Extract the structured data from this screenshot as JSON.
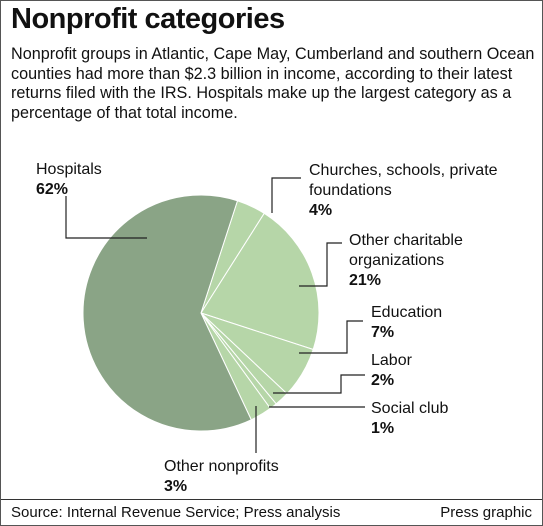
{
  "title": "Nonprofit categories",
  "subtitle": "Nonprofit groups in Atlantic, Cape May, Cumberland and southern Ocean counties had more than $2.3 billion in income, according to their latest returns filed with the IRS. Hospitals make up the largest category as a percentage of that total income.",
  "chart_data": {
    "type": "pie",
    "categories": [
      "Churches, schools, private foundations",
      "Other charitable organizations",
      "Education",
      "Labor",
      "Social club",
      "Other nonprofits",
      "Hospitals"
    ],
    "values": [
      4,
      21,
      7,
      2,
      1,
      3,
      62
    ],
    "value_labels": [
      "4%",
      "21%",
      "7%",
      "2%",
      "1%",
      "3%",
      "62%"
    ],
    "colors": [
      "#b6d6a8",
      "#b6d6a8",
      "#b6d6a8",
      "#b6d6a8",
      "#b6d6a8",
      "#b6d6a8",
      "#8aa486"
    ]
  },
  "source": "Source: Internal Revenue Service; Press analysis",
  "credit": "Press graphic"
}
